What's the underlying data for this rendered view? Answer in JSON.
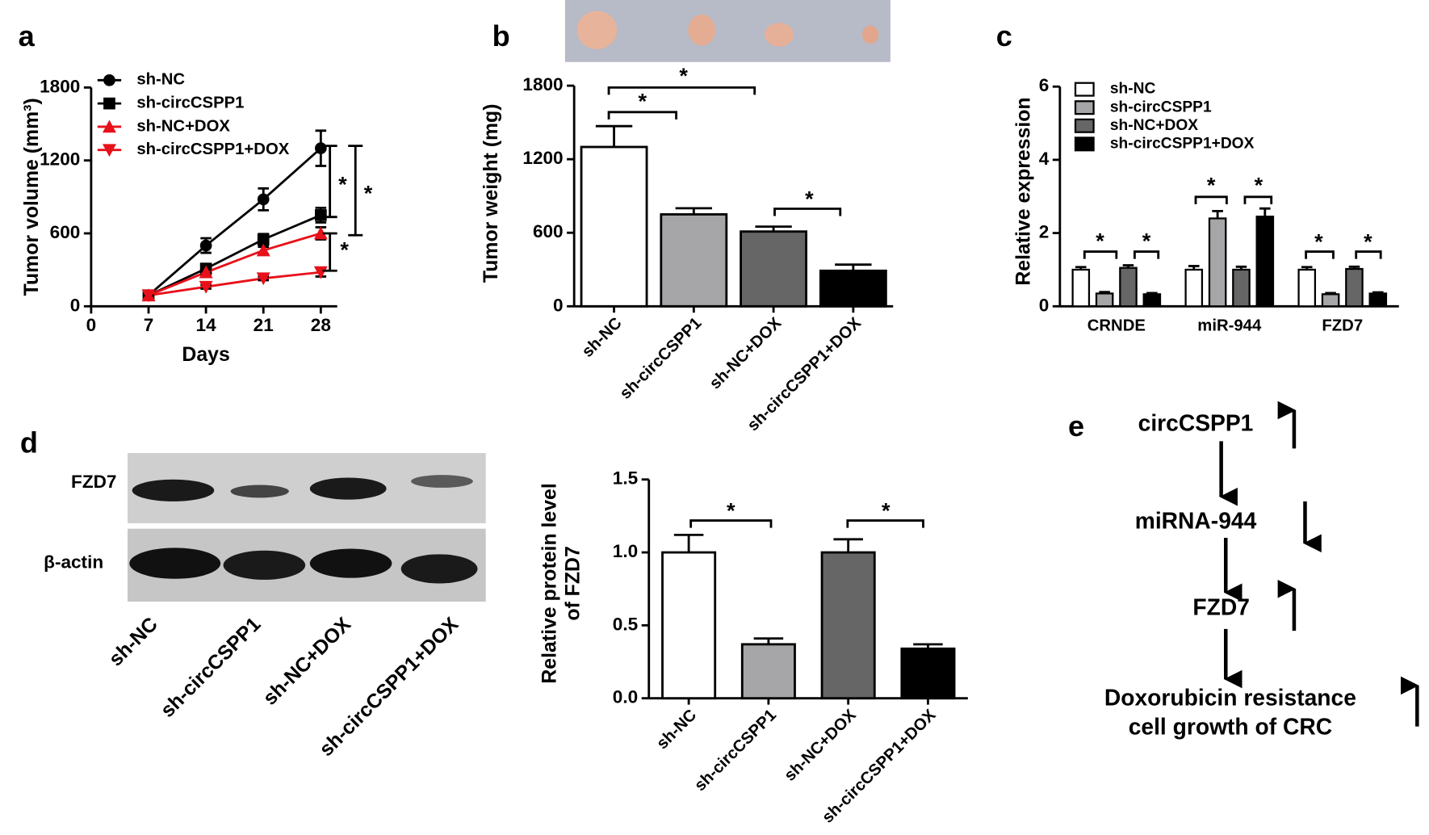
{
  "chart_data": [
    {
      "type": "line",
      "panel_label": "a",
      "xlabel": "Days",
      "ylabel": "Tumor volume (mm³)",
      "x": [
        7,
        14,
        21,
        28
      ],
      "xlim": [
        0,
        30
      ],
      "xticks": [
        0,
        7,
        14,
        21,
        28
      ],
      "ylim": [
        0,
        1800
      ],
      "yticks": [
        0,
        600,
        1200,
        1800
      ],
      "legend": "upper left",
      "series": [
        {
          "name": "sh-NC",
          "color": "#000000",
          "marker": "circle",
          "values": [
            90,
            500,
            880,
            1300
          ],
          "errors": [
            0,
            60,
            90,
            145
          ]
        },
        {
          "name": "sh-circCSPP1",
          "color": "#000000",
          "marker": "square",
          "values": [
            90,
            310,
            550,
            750
          ],
          "errors": [
            0,
            25,
            45,
            60
          ]
        },
        {
          "name": "sh-NC+DOX",
          "color": "#e8101a",
          "marker": "triangle-up",
          "values": [
            90,
            280,
            460,
            600
          ],
          "errors": [
            0,
            20,
            30,
            50
          ]
        },
        {
          "name": "sh-circCSPP1+DOX",
          "color": "#e8101a",
          "marker": "triangle-down",
          "values": [
            90,
            160,
            230,
            280
          ],
          "errors": [
            0,
            15,
            15,
            35
          ]
        }
      ],
      "annotations": [
        "*",
        "*",
        "*"
      ]
    },
    {
      "type": "bar",
      "panel_label": "b",
      "ylabel": "Tumor weight (mg)",
      "categories": [
        "sh-NC",
        "sh-circCSPP1",
        "sh-NC+DOX",
        "sh-circCSPP1+DOX"
      ],
      "values": [
        1300,
        750,
        610,
        290
      ],
      "errors": [
        170,
        50,
        40,
        50
      ],
      "colors": [
        "#ffffff",
        "#a6a6a8",
        "#666666",
        "#000000"
      ],
      "ylim": [
        0,
        1800
      ],
      "yticks": [
        0,
        600,
        1200,
        1800
      ],
      "annotations": [
        "*",
        "*",
        "*"
      ]
    },
    {
      "type": "grouped_bar",
      "panel_label": "c",
      "ylabel": "Relative expression",
      "categories": [
        "CRNDE",
        "miR-944",
        "FZD7"
      ],
      "ylim": [
        0,
        6
      ],
      "yticks": [
        0,
        2,
        4,
        6
      ],
      "legend": "upper left",
      "series": [
        {
          "name": "sh-NC",
          "color": "#ffffff",
          "values": [
            1.0,
            1.0,
            1.0
          ],
          "errors": [
            0.07,
            0.1,
            0.07
          ]
        },
        {
          "name": "sh-circCSPP1",
          "color": "#a6a6a8",
          "values": [
            0.35,
            2.4,
            0.33
          ],
          "errors": [
            0.04,
            0.2,
            0.03
          ]
        },
        {
          "name": "sh-NC+DOX",
          "color": "#666666",
          "values": [
            1.05,
            1.0,
            1.02
          ],
          "errors": [
            0.07,
            0.08,
            0.06
          ]
        },
        {
          "name": "sh-circCSPP1+DOX",
          "color": "#000000",
          "values": [
            0.33,
            2.45,
            0.35
          ],
          "errors": [
            0.03,
            0.22,
            0.03
          ]
        }
      ],
      "annotations": [
        "*",
        "*",
        "*",
        "*",
        "*",
        "*"
      ]
    },
    {
      "type": "bar",
      "ylabel": [
        "Relative protein level",
        "of FZD7"
      ],
      "categories": [
        "sh-NC",
        "sh-circCSPP1",
        "sh-NC+DOX",
        "sh-circCSPP1+DOX"
      ],
      "values": [
        1.0,
        0.37,
        1.0,
        0.34
      ],
      "errors": [
        0.12,
        0.04,
        0.09,
        0.03
      ],
      "colors": [
        "#ffffff",
        "#a6a6a8",
        "#666666",
        "#000000"
      ],
      "ylim": [
        0,
        1.5
      ],
      "yticks": [
        {
          "value": 0,
          "label": "0.0"
        },
        0.5,
        {
          "value": 1,
          "label": "1.0"
        },
        1.5
      ],
      "annotations": [
        "*",
        "*"
      ]
    }
  ],
  "blot": {
    "panel_label": "d",
    "rows": [
      "FZD7",
      "β-actin"
    ],
    "lanes": [
      "sh-NC",
      "sh-circCSPP1",
      "sh-NC+DOX",
      "sh-circCSPP1+DOX"
    ]
  },
  "diagram": {
    "panel_label": "e",
    "nodes": [
      "circCSPP1",
      "miRNA-944",
      "FZD7"
    ],
    "outcome": [
      "Doxorubicin resistance",
      "cell growth of CRC"
    ]
  }
}
